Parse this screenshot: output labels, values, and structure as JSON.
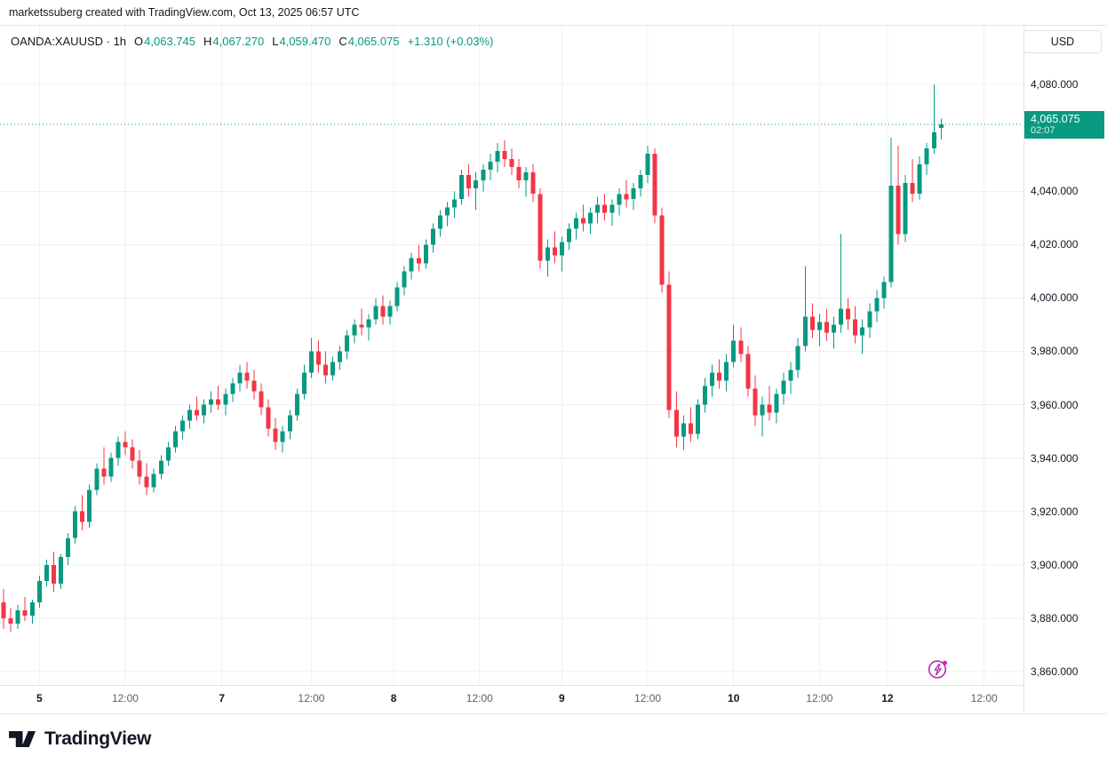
{
  "attribution": "marketssuberg created with TradingView.com, Oct 13, 2025 06:57 UTC",
  "legend": {
    "title": "OANDA:XAUUSD · 1h",
    "o_label": "O",
    "o": "4,063.745",
    "h_label": "H",
    "h": "4,067.270",
    "l_label": "L",
    "l": "4,059.470",
    "c_label": "C",
    "c": "4,065.075",
    "change": "+1.310 (+0.03%)"
  },
  "currency_button_label": "USD",
  "price_badge": {
    "price": "4,065.075",
    "countdown": "02:07"
  },
  "branding": {
    "logo_text": "TradingView"
  },
  "colors": {
    "up": "#089981",
    "down": "#f23645",
    "accent": "#089981",
    "grid": "#eef0f3",
    "axis_text": "#131722",
    "muted_text": "#5d606b",
    "border": "#e0e3eb",
    "flash": "#b32bb5",
    "flash_dot": "#d126a6"
  },
  "chart_data": {
    "type": "candlestick",
    "symbol": "OANDA:XAUUSD",
    "interval": "1h",
    "grid": true,
    "legend_position": "top-left",
    "ylim": [
      3855,
      4102
    ],
    "total_slots": 143,
    "price_axis_ticks": [
      {
        "v": 4080,
        "label": "4,080.000"
      },
      {
        "v": 4040,
        "label": "4,040.000"
      },
      {
        "v": 4020,
        "label": "4,020.000"
      },
      {
        "v": 4000,
        "label": "4,000.000"
      },
      {
        "v": 3980,
        "label": "3,980.000"
      },
      {
        "v": 3960,
        "label": "3,960.000"
      },
      {
        "v": 3940,
        "label": "3,940.000"
      },
      {
        "v": 3920,
        "label": "3,920.000"
      },
      {
        "v": 3900,
        "label": "3,900.000"
      },
      {
        "v": 3880,
        "label": "3,880.000"
      },
      {
        "v": 3860,
        "label": "3,860.000"
      }
    ],
    "time_axis_labels": [
      {
        "label": "5",
        "slot": 5,
        "emphasis": true
      },
      {
        "label": "12:00",
        "slot": 17
      },
      {
        "label": "7",
        "slot": 30.5,
        "emphasis": true
      },
      {
        "label": "12:00",
        "slot": 43
      },
      {
        "label": "8",
        "slot": 54.5,
        "emphasis": true
      },
      {
        "label": "12:00",
        "slot": 66.5
      },
      {
        "label": "9",
        "slot": 78,
        "emphasis": true
      },
      {
        "label": "12:00",
        "slot": 90
      },
      {
        "label": "10",
        "slot": 102,
        "emphasis": true
      },
      {
        "label": "12:00",
        "slot": 114
      },
      {
        "label": "12",
        "slot": 123.5,
        "emphasis": true
      },
      {
        "label": "12:00",
        "slot": 137
      }
    ],
    "last": {
      "open": 4063.745,
      "high": 4067.27,
      "low": 4059.47,
      "close": 4065.075,
      "change": "+1.310 (+0.03%)"
    },
    "candles": [
      [
        3886,
        3891,
        3876,
        3880
      ],
      [
        3880,
        3884,
        3875,
        3878
      ],
      [
        3878,
        3885,
        3876,
        3883
      ],
      [
        3883,
        3888,
        3879,
        3881
      ],
      [
        3881,
        3887,
        3878,
        3886
      ],
      [
        3886,
        3896,
        3884,
        3894
      ],
      [
        3894,
        3902,
        3892,
        3900
      ],
      [
        3900,
        3905,
        3890,
        3893
      ],
      [
        3893,
        3904,
        3891,
        3903
      ],
      [
        3903,
        3912,
        3900,
        3910
      ],
      [
        3910,
        3922,
        3908,
        3920
      ],
      [
        3920,
        3926,
        3913,
        3916
      ],
      [
        3916,
        3930,
        3914,
        3928
      ],
      [
        3928,
        3938,
        3926,
        3936
      ],
      [
        3936,
        3944,
        3930,
        3933
      ],
      [
        3933,
        3942,
        3931,
        3940
      ],
      [
        3940,
        3948,
        3937,
        3946
      ],
      [
        3946,
        3950,
        3941,
        3944
      ],
      [
        3944,
        3947,
        3936,
        3939
      ],
      [
        3939,
        3943,
        3930,
        3933
      ],
      [
        3933,
        3938,
        3926,
        3929
      ],
      [
        3929,
        3936,
        3927,
        3934
      ],
      [
        3934,
        3941,
        3932,
        3939
      ],
      [
        3939,
        3946,
        3937,
        3944
      ],
      [
        3944,
        3952,
        3942,
        3950
      ],
      [
        3950,
        3956,
        3947,
        3954
      ],
      [
        3954,
        3960,
        3951,
        3958
      ],
      [
        3958,
        3963,
        3954,
        3956
      ],
      [
        3956,
        3962,
        3953,
        3960
      ],
      [
        3960,
        3965,
        3957,
        3962
      ],
      [
        3962,
        3967,
        3958,
        3960
      ],
      [
        3960,
        3966,
        3956,
        3964
      ],
      [
        3964,
        3970,
        3961,
        3968
      ],
      [
        3968,
        3975,
        3965,
        3972
      ],
      [
        3972,
        3976,
        3966,
        3969
      ],
      [
        3969,
        3973,
        3962,
        3965
      ],
      [
        3965,
        3968,
        3956,
        3959
      ],
      [
        3959,
        3962,
        3948,
        3951
      ],
      [
        3951,
        3955,
        3943,
        3946
      ],
      [
        3946,
        3952,
        3942,
        3950
      ],
      [
        3950,
        3958,
        3947,
        3956
      ],
      [
        3956,
        3966,
        3954,
        3964
      ],
      [
        3964,
        3975,
        3962,
        3972
      ],
      [
        3972,
        3985,
        3970,
        3980
      ],
      [
        3980,
        3984,
        3972,
        3975
      ],
      [
        3975,
        3980,
        3968,
        3971
      ],
      [
        3971,
        3978,
        3969,
        3976
      ],
      [
        3976,
        3982,
        3973,
        3980
      ],
      [
        3980,
        3988,
        3977,
        3986
      ],
      [
        3986,
        3992,
        3983,
        3990
      ],
      [
        3990,
        3996,
        3986,
        3989
      ],
      [
        3989,
        3994,
        3984,
        3992
      ],
      [
        3992,
        4000,
        3990,
        3997
      ],
      [
        3997,
        4001,
        3990,
        3993
      ],
      [
        3993,
        3999,
        3990,
        3997
      ],
      [
        3997,
        4006,
        3995,
        4004
      ],
      [
        4004,
        4012,
        4001,
        4010
      ],
      [
        4010,
        4017,
        4007,
        4015
      ],
      [
        4015,
        4020,
        4010,
        4013
      ],
      [
        4013,
        4022,
        4011,
        4020
      ],
      [
        4020,
        4028,
        4017,
        4026
      ],
      [
        4026,
        4033,
        4023,
        4031
      ],
      [
        4031,
        4036,
        4027,
        4034
      ],
      [
        4034,
        4040,
        4030,
        4037
      ],
      [
        4037,
        4048,
        4035,
        4046
      ],
      [
        4046,
        4050,
        4038,
        4041
      ],
      [
        4041,
        4047,
        4033,
        4044
      ],
      [
        4044,
        4050,
        4040,
        4048
      ],
      [
        4048,
        4054,
        4044,
        4051
      ],
      [
        4051,
        4058,
        4047,
        4055
      ],
      [
        4055,
        4059,
        4049,
        4052
      ],
      [
        4052,
        4056,
        4046,
        4049
      ],
      [
        4049,
        4052,
        4041,
        4044
      ],
      [
        4044,
        4049,
        4038,
        4047
      ],
      [
        4047,
        4050,
        4036,
        4039
      ],
      [
        4039,
        4041,
        4011,
        4014
      ],
      [
        4014,
        4022,
        4008,
        4019
      ],
      [
        4019,
        4025,
        4013,
        4016
      ],
      [
        4016,
        4023,
        4010,
        4021
      ],
      [
        4021,
        4028,
        4018,
        4026
      ],
      [
        4026,
        4032,
        4022,
        4030
      ],
      [
        4030,
        4035,
        4025,
        4028
      ],
      [
        4028,
        4034,
        4024,
        4032
      ],
      [
        4032,
        4038,
        4028,
        4035
      ],
      [
        4035,
        4039,
        4029,
        4032
      ],
      [
        4032,
        4037,
        4027,
        4035
      ],
      [
        4035,
        4041,
        4031,
        4039
      ],
      [
        4039,
        4044,
        4034,
        4037
      ],
      [
        4037,
        4043,
        4033,
        4041
      ],
      [
        4041,
        4048,
        4038,
        4046
      ],
      [
        4046,
        4057,
        4043,
        4054
      ],
      [
        4054,
        4056,
        4028,
        4031
      ],
      [
        4031,
        4034,
        4002,
        4005
      ],
      [
        4005,
        4010,
        3955,
        3958
      ],
      [
        3958,
        3965,
        3944,
        3948
      ],
      [
        3948,
        3956,
        3943,
        3953
      ],
      [
        3953,
        3959,
        3946,
        3949
      ],
      [
        3949,
        3962,
        3947,
        3960
      ],
      [
        3960,
        3970,
        3957,
        3967
      ],
      [
        3967,
        3975,
        3963,
        3972
      ],
      [
        3972,
        3977,
        3966,
        3969
      ],
      [
        3969,
        3979,
        3965,
        3976
      ],
      [
        3976,
        3990,
        3974,
        3984
      ],
      [
        3984,
        3989,
        3976,
        3979
      ],
      [
        3979,
        3982,
        3963,
        3966
      ],
      [
        3966,
        3971,
        3952,
        3956
      ],
      [
        3956,
        3963,
        3948,
        3960
      ],
      [
        3960,
        3967,
        3954,
        3957
      ],
      [
        3957,
        3966,
        3953,
        3964
      ],
      [
        3964,
        3972,
        3960,
        3969
      ],
      [
        3969,
        3976,
        3964,
        3973
      ],
      [
        3973,
        3985,
        3970,
        3982
      ],
      [
        3982,
        4012,
        3980,
        3993
      ],
      [
        3993,
        3998,
        3985,
        3988
      ],
      [
        3988,
        3994,
        3982,
        3991
      ],
      [
        3991,
        3996,
        3984,
        3987
      ],
      [
        3987,
        3993,
        3981,
        3990
      ],
      [
        3990,
        4024,
        3987,
        3996
      ],
      [
        3996,
        4000,
        3988,
        3992
      ],
      [
        3992,
        3997,
        3983,
        3986
      ],
      [
        3986,
        3992,
        3979,
        3989
      ],
      [
        3989,
        3998,
        3985,
        3995
      ],
      [
        3995,
        4003,
        3991,
        4000
      ],
      [
        4000,
        4008,
        3996,
        4006
      ],
      [
        4006,
        4060,
        4004,
        4042
      ],
      [
        4042,
        4057,
        4020,
        4024
      ],
      [
        4024,
        4046,
        4021,
        4043
      ],
      [
        4043,
        4052,
        4036,
        4039
      ],
      [
        4039,
        4053,
        4037,
        4050
      ],
      [
        4050,
        4058,
        4046,
        4056
      ],
      [
        4056,
        4080,
        4054,
        4062
      ],
      [
        4063.745,
        4067.27,
        4059.47,
        4065.075
      ]
    ]
  }
}
